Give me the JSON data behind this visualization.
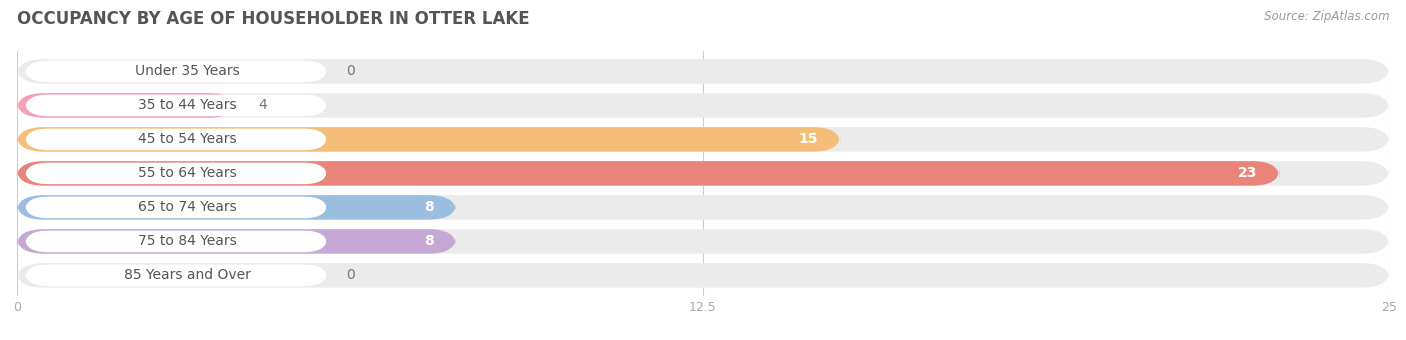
{
  "title": "OCCUPANCY BY AGE OF HOUSEHOLDER IN OTTER LAKE",
  "source": "Source: ZipAtlas.com",
  "categories": [
    "Under 35 Years",
    "35 to 44 Years",
    "45 to 54 Years",
    "55 to 64 Years",
    "65 to 74 Years",
    "75 to 84 Years",
    "85 Years and Over"
  ],
  "values": [
    0,
    4,
    15,
    23,
    8,
    8,
    0
  ],
  "bar_colors": [
    "#b0aed8",
    "#f4a0b5",
    "#f5be78",
    "#e8847a",
    "#9bbde0",
    "#c5a8d5",
    "#78cece"
  ],
  "xlim": [
    0,
    25
  ],
  "xticks": [
    0,
    12.5,
    25
  ],
  "title_fontsize": 12,
  "label_fontsize": 10,
  "value_fontsize": 10,
  "background_color": "#ffffff",
  "track_color": "#ebebeb",
  "title_color": "#555555",
  "tick_color": "#aaaaaa",
  "source_color": "#999999",
  "grid_color": "#cccccc"
}
